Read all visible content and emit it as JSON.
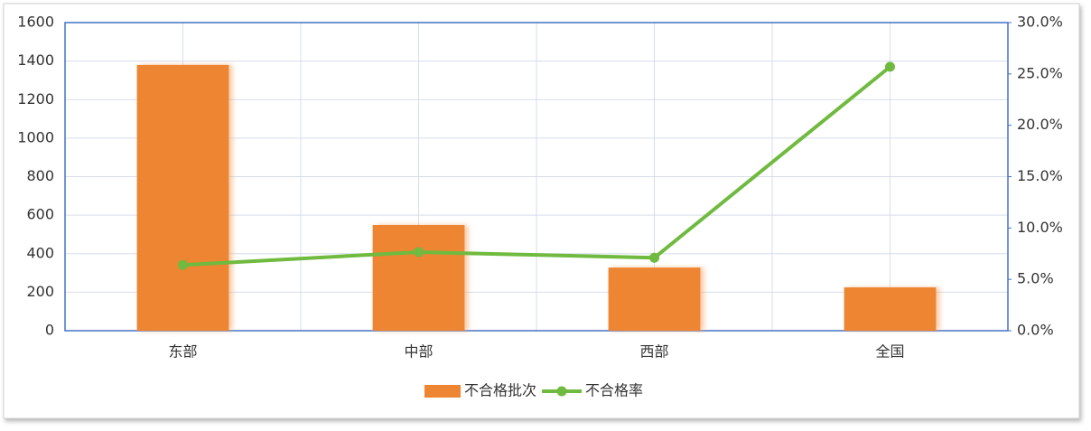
{
  "chart_data": {
    "type": "bar",
    "categories": [
      "东部",
      "中部",
      "西部",
      "全国"
    ],
    "series": [
      {
        "name": "不合格批次",
        "type": "bar",
        "color": "#ed8533",
        "values": [
          1380,
          549,
          328,
          225
        ]
      },
      {
        "name": "不合格率",
        "type": "line",
        "axis": "y2",
        "color": "#6fba3f",
        "values": [
          6.4,
          7.65,
          7.1,
          25.7
        ]
      }
    ],
    "ylim": [
      0,
      1600
    ],
    "yticks": [
      0,
      200,
      400,
      600,
      800,
      1000,
      1200,
      1400,
      1600
    ],
    "y2lim": [
      0,
      30
    ],
    "y2ticks": [
      {
        "value": 0,
        "label": "0.0%"
      },
      {
        "value": 5,
        "label": "5.0%"
      },
      {
        "value": 10,
        "label": "10.0%"
      },
      {
        "value": 15,
        "label": "15.0%"
      },
      {
        "value": 20,
        "label": "20.0%"
      },
      {
        "value": 25,
        "label": "25.0%"
      },
      {
        "value": 30,
        "label": "30.0%"
      }
    ],
    "grid": true,
    "legend": "bottom"
  }
}
